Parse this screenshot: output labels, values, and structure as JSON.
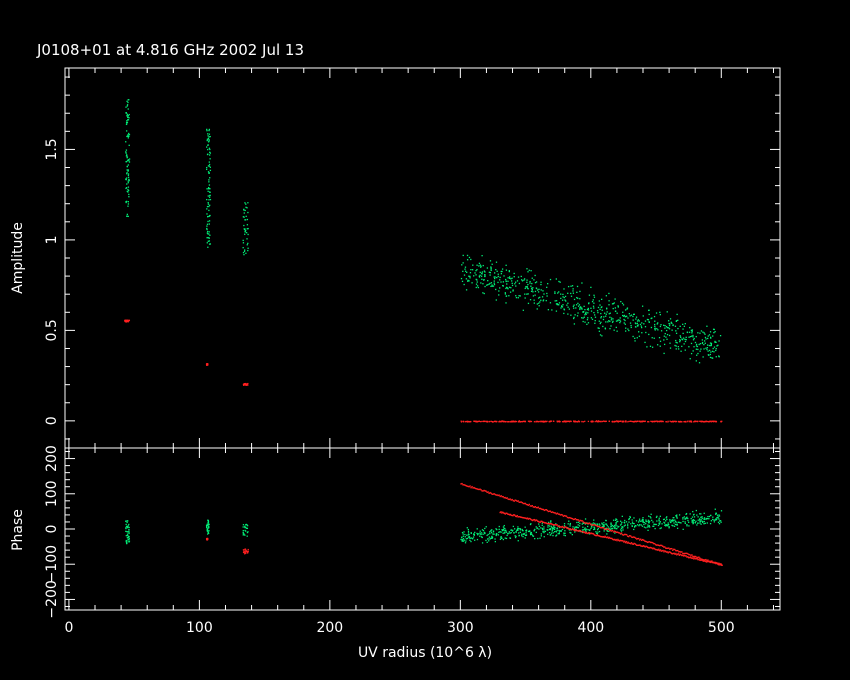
{
  "chart_data": [
    {
      "type": "scatter",
      "title": "J0108+01 at 4.816 GHz 2002 Jul 13",
      "xlabel": "UV radius  (10^6 λ)",
      "ylabel": "Amplitude",
      "xlim": [
        -3,
        545
      ],
      "ylim": [
        -0.15,
        1.95
      ],
      "x_ticks": [
        0,
        100,
        200,
        300,
        400,
        500
      ],
      "y_ticks": [
        "0",
        "0.5",
        "1",
        "1.5"
      ],
      "series": [
        {
          "color": "#00ee77",
          "clusters": [
            {
              "x": [
                43,
                46
              ],
              "y": [
                1.13,
                1.78
              ]
            },
            {
              "x": [
                105,
                108
              ],
              "y": [
                0.96,
                1.62
              ]
            },
            {
              "x": [
                133,
                137
              ],
              "y": [
                0.92,
                1.22
              ]
            }
          ],
          "band": {
            "x": [
              300,
              500
            ],
            "center_start": 0.84,
            "center_end": 0.4,
            "spread": 0.15
          }
        },
        {
          "color": "#ff2020",
          "clusters": [
            {
              "x": [
                42,
                46
              ],
              "y": [
                0.55,
                0.56
              ]
            },
            {
              "x": [
                105,
                106
              ],
              "y": [
                0.31,
                0.32
              ]
            },
            {
              "x": [
                133,
                137
              ],
              "y": [
                0.2,
                0.21
              ]
            }
          ],
          "band": {
            "x": [
              300,
              500
            ],
            "center_start": 0.0,
            "center_end": 0.0,
            "spread": 0.004
          }
        }
      ]
    },
    {
      "type": "scatter",
      "xlabel": "UV radius  (10^6 λ)",
      "ylabel": "Phase",
      "xlim": [
        -3,
        545
      ],
      "ylim": [
        -230,
        230
      ],
      "x_ticks": [
        0,
        100,
        200,
        300,
        400,
        500
      ],
      "y_ticks": [
        "200",
        "100",
        "0",
        "−100",
        "−200"
      ],
      "series": [
        {
          "color": "#00ee77",
          "clusters": [
            {
              "x": [
                43,
                46
              ],
              "y": [
                -40,
                25
              ]
            },
            {
              "x": [
                105,
                107
              ],
              "y": [
                -15,
                30
              ]
            },
            {
              "x": [
                133,
                137
              ],
              "y": [
                -20,
                15
              ]
            }
          ],
          "band": {
            "x": [
              300,
              500
            ],
            "center_start": -20,
            "center_end": 35,
            "spread": 30
          }
        },
        {
          "color": "#ff2020",
          "clusters": [
            {
              "x": [
                105,
                106
              ],
              "y": [
                -30,
                -25
              ]
            },
            {
              "x": [
                133,
                137
              ],
              "y": [
                -70,
                -55
              ]
            }
          ],
          "lines": [
            {
              "x": [
                300,
                500
              ],
              "y": [
                130,
                -100
              ]
            },
            {
              "x": [
                330,
                500
              ],
              "y": [
                50,
                -100
              ]
            }
          ]
        }
      ]
    }
  ]
}
